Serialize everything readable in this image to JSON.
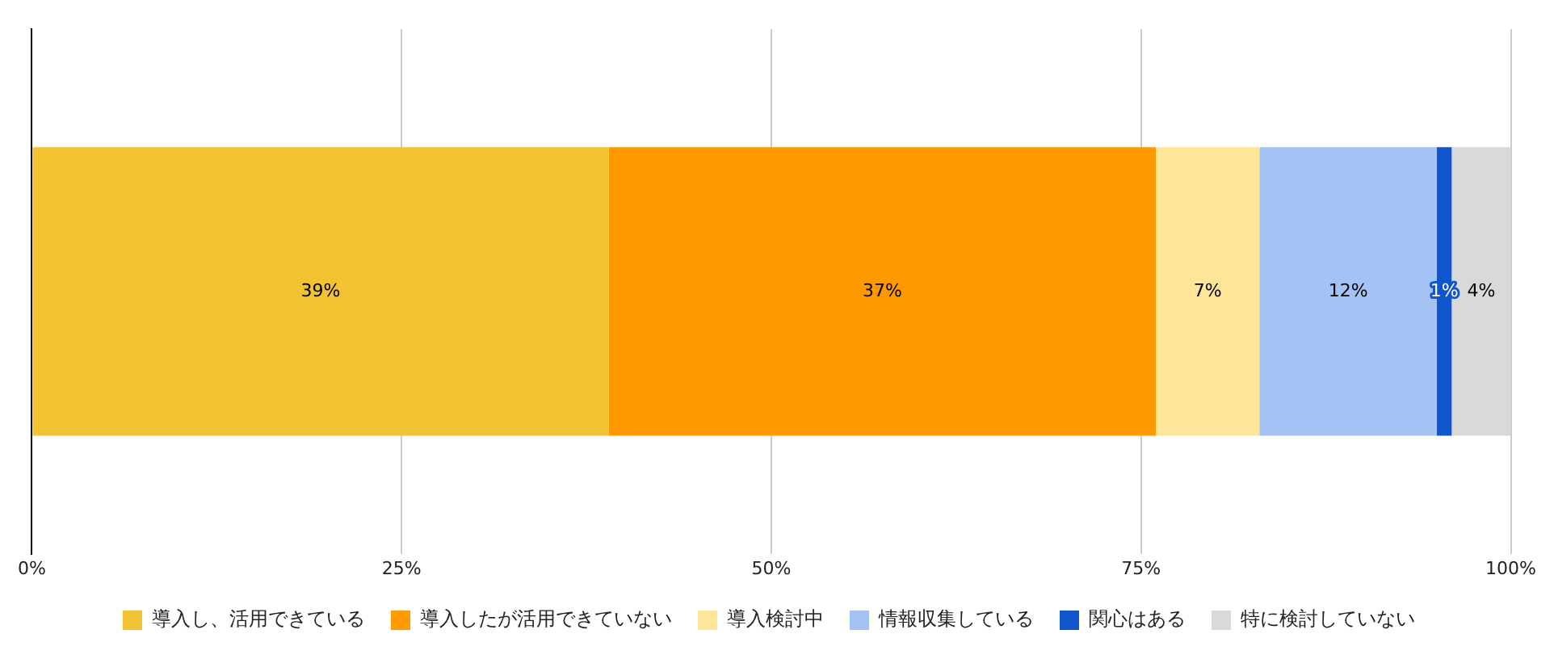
{
  "chart_data": {
    "type": "bar",
    "orientation": "horizontal",
    "stacked": true,
    "categories": [
      null
    ],
    "series": [
      {
        "name": "導入し、活用できている",
        "color": "#f1c232",
        "values": [
          39
        ],
        "value_labels": [
          "39%"
        ]
      },
      {
        "name": "導入したが活用できていない",
        "color": "#ff9900",
        "values": [
          37
        ],
        "value_labels": [
          "37%"
        ]
      },
      {
        "name": "導入検討中",
        "color": "#ffe599",
        "values": [
          7
        ],
        "value_labels": [
          "7%"
        ]
      },
      {
        "name": "情報収集している",
        "color": "#a4c2f4",
        "values": [
          12
        ],
        "value_labels": [
          "12%"
        ]
      },
      {
        "name": "関心はある",
        "color": "#1155cc",
        "values": [
          1
        ],
        "value_labels": [
          "1%"
        ]
      },
      {
        "name": "特に検討していない",
        "color": "#d9d9d9",
        "values": [
          4
        ],
        "value_labels": [
          "4%"
        ]
      }
    ],
    "xlim": [
      0,
      100
    ],
    "xticks": [
      {
        "value": 0,
        "label": "0%"
      },
      {
        "value": 25,
        "label": "25%"
      },
      {
        "value": 50,
        "label": "50%"
      },
      {
        "value": 75,
        "label": "75%"
      },
      {
        "value": 100,
        "label": "100%"
      }
    ],
    "grid": "x",
    "legend": "bottom"
  }
}
